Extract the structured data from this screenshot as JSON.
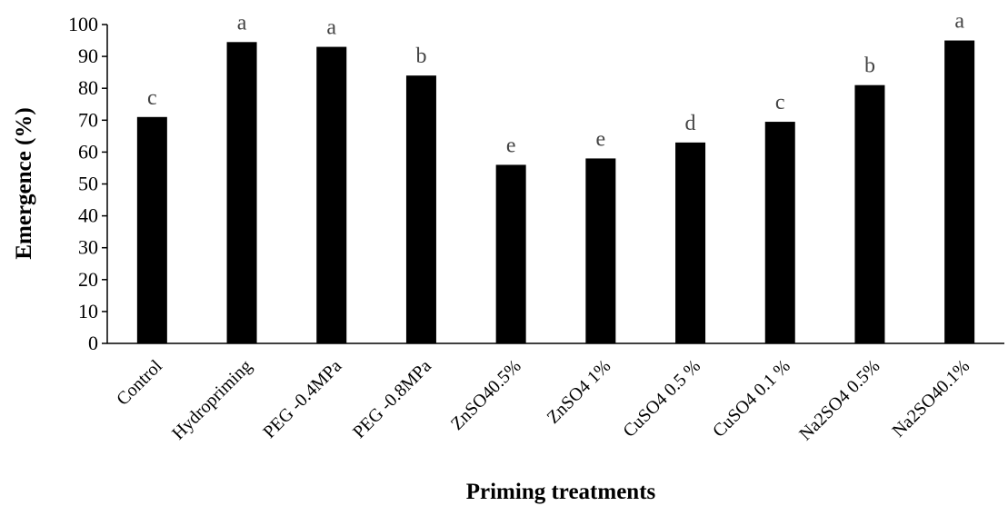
{
  "chart_data": {
    "type": "bar",
    "title": "",
    "xlabel": "Priming treatments",
    "ylabel": "Emergence (%)",
    "ylim": [
      0,
      100
    ],
    "yticks": [
      0,
      10,
      20,
      30,
      40,
      50,
      60,
      70,
      80,
      90,
      100
    ],
    "grid": false,
    "legend": "none",
    "bar_color": "#000000",
    "categories": [
      "Control",
      "Hydropriming",
      "PEG -0.4MPa",
      "PEG -0.8MPa",
      "ZnSO40.5%",
      "ZnSO4 1%",
      "CuSO4 0.5 %",
      "CuSO4 0.1 %",
      "Na2SO4 0.5%",
      "Na2SO40.1%"
    ],
    "values": [
      71,
      94.5,
      93,
      84,
      56,
      58,
      63,
      69.5,
      81,
      95
    ],
    "significance_letters": [
      "c",
      "a",
      "a",
      "b",
      "e",
      "e",
      "d",
      "c",
      "b",
      "a"
    ]
  }
}
